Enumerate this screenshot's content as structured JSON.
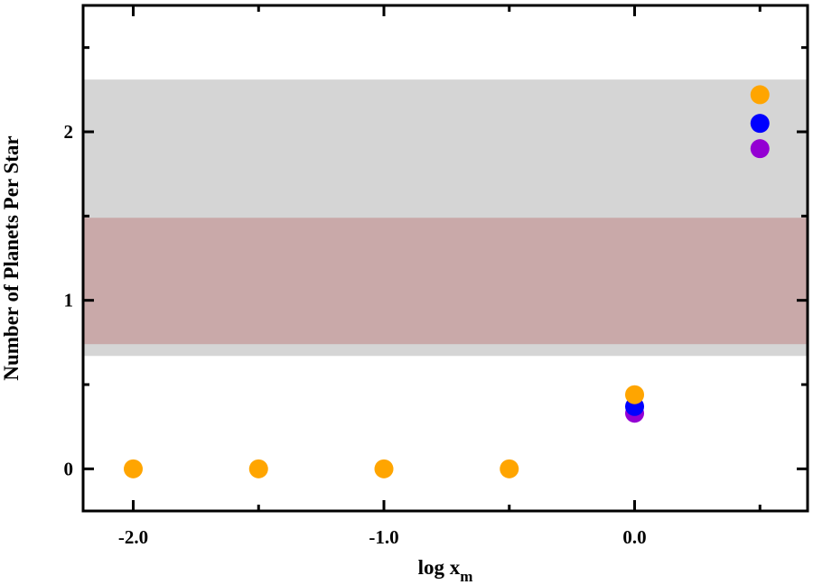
{
  "chart_data": {
    "type": "scatter",
    "xlabel": "log x",
    "xlabel_subscript": "m",
    "ylabel": "Number of Planets Per Star",
    "xlim": [
      -2.2,
      0.69
    ],
    "ylim": [
      -0.25,
      2.75
    ],
    "x_ticks": [
      {
        "value": -2.0,
        "label": "-2.0"
      },
      {
        "value": -1.0,
        "label": "-1.0"
      },
      {
        "value": 0.0,
        "label": "0.0"
      }
    ],
    "x_minor_ticks": [
      -1.5,
      -0.5,
      0.5
    ],
    "y_ticks": [
      {
        "value": 0,
        "label": "0"
      },
      {
        "value": 1,
        "label": "1"
      },
      {
        "value": 2,
        "label": "2"
      }
    ],
    "y_minor_ticks": [
      0.5,
      1.5,
      2.5
    ],
    "bands": [
      {
        "y0": 0.67,
        "y1": 2.31,
        "color": "#d3d3d3"
      },
      {
        "y0": 0.74,
        "y1": 1.49,
        "color": "#c8a6a6"
      }
    ],
    "series": [
      {
        "color": "#9400d3",
        "points": [
          [
            0.0,
            0.33
          ],
          [
            0.5,
            1.9
          ]
        ]
      },
      {
        "color": "#0000ff",
        "points": [
          [
            0.0,
            0.37
          ],
          [
            0.5,
            2.05
          ]
        ]
      },
      {
        "color": "#ffa500",
        "points": [
          [
            -2.0,
            0.0
          ],
          [
            -1.5,
            0.0
          ],
          [
            -1.0,
            0.0
          ],
          [
            -0.5,
            0.0
          ],
          [
            0.0,
            0.44
          ],
          [
            0.5,
            2.22
          ]
        ]
      }
    ],
    "grid": false,
    "legend": "none"
  }
}
